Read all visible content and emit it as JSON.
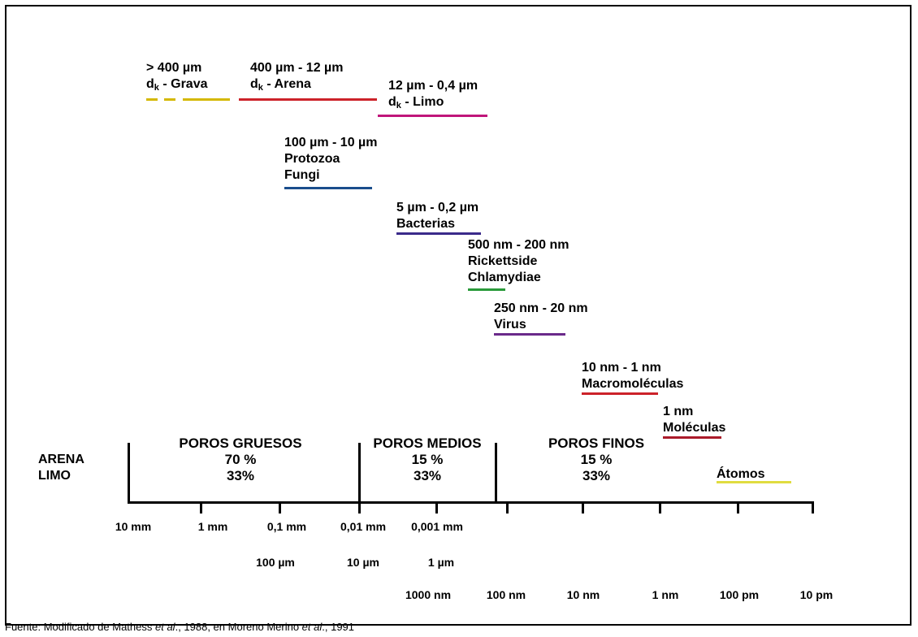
{
  "labels": {
    "grava": {
      "range": "> 400 µm",
      "sub": "k",
      "name": " - Grava",
      "color": "#d4b800"
    },
    "arena": {
      "range": "400 µm - 12 µm",
      "sub": "k",
      "name": " - Arena",
      "color": "#cc2229"
    },
    "limo": {
      "range": "12 µm - 0,4 µm",
      "sub": "k",
      "name": " - Limo",
      "color": "#c0157a"
    },
    "protozoa": {
      "range": "100 µm - 10 µm",
      "line2": "Protozoa",
      "line3": "Fungi",
      "color": "#1a4e8c"
    },
    "bacterias": {
      "range": "5 µm - 0,2 µm",
      "line2": "Bacterias",
      "color": "#3b2a8a"
    },
    "rickettside": {
      "range": "500 nm - 200 nm",
      "line2": "Rickettside",
      "line3": "Chlamydiae",
      "color": "#2a9a3a"
    },
    "virus": {
      "range": "250 nm - 20 nm",
      "line2": "Virus",
      "color": "#6a2a8a"
    },
    "macro": {
      "range": "10 nm - 1 nm",
      "line2": "Macromoléculas",
      "color": "#cc2229"
    },
    "moleculas": {
      "range": "1 nm",
      "line2": "Moléculas",
      "color": "#aa1a2a"
    },
    "atomos": {
      "line1": "Átomos",
      "color": "#e0dc40"
    }
  },
  "side_labels": [
    "ARENA",
    "LIMO"
  ],
  "zones": {
    "gruesos": {
      "title": "POROS GRUESOS",
      "arena": "70 %",
      "limo": "33%"
    },
    "medios": {
      "title": "POROS MEDIOS",
      "arena": "15 %",
      "limo": "33%"
    },
    "finos": {
      "title": "POROS FINOS",
      "arena": "15 %",
      "limo": "33%"
    }
  },
  "scale_row1": [
    "10 mm",
    "1 mm",
    "0,1 mm",
    "0,01 mm",
    "0,001 mm"
  ],
  "scale_row2": [
    "100 µm",
    "10 µm",
    "1 µm"
  ],
  "scale_row3": [
    "1000 nm",
    "100 nm",
    "10 nm",
    "1 nm",
    "100 pm",
    "10 pm"
  ],
  "source": {
    "p1": "Fuente: Modificado de Mathess ",
    "p2": "et al",
    "p3": "., 1988, en Moreno Merino ",
    "p4": "et al",
    "p5": "., 1991"
  }
}
